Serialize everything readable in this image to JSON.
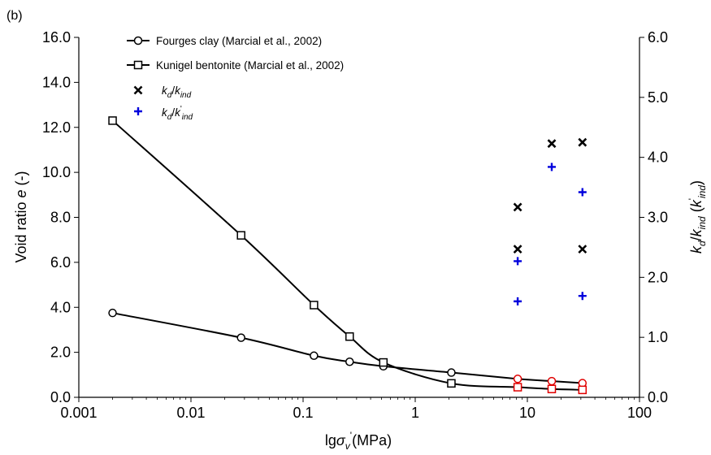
{
  "chart_data": {
    "panel_label": "(b)",
    "type": "line+scatter",
    "x_scale": "log",
    "xlim": [
      0.001,
      100
    ],
    "ylim_left": [
      0,
      16
    ],
    "ylim_right": [
      0,
      6
    ],
    "x_ticks": [
      0.001,
      0.01,
      0.1,
      1,
      10,
      100
    ],
    "x_tick_labels": [
      "0.001",
      "0.01",
      "0.1",
      "1",
      "10",
      "100"
    ],
    "y_left_ticks": [
      0,
      2,
      4,
      6,
      8,
      10,
      12,
      14,
      16
    ],
    "y_left_tick_labels": [
      "0.0",
      "2.0",
      "4.0",
      "6.0",
      "8.0",
      "10.0",
      "12.0",
      "14.0",
      "16.0"
    ],
    "y_right_ticks": [
      0,
      1,
      2,
      3,
      4,
      5,
      6
    ],
    "y_right_tick_labels": [
      "0.0",
      "1.0",
      "2.0",
      "3.0",
      "4.0",
      "5.0",
      "6.0"
    ],
    "xlabel": {
      "main": "lg",
      "sym": "σ",
      "sub": "v",
      "prime": "'",
      "unit": "(MPa)"
    },
    "ylabel_left": {
      "pre": "Void ratio ",
      "sym": "e",
      "post": " (-)"
    },
    "ylabel_right": {
      "k": "k",
      "d": "d",
      "slash": "/",
      "k2": "k",
      "ind": "ind",
      "paren_open": " (",
      "k3": "k",
      "prime": "'",
      "ind2": "ind",
      "paren_close": ")"
    },
    "legend_position": "top-left",
    "legend": [
      {
        "label": "Fourges clay (Marcial et al., 2002)",
        "marker": "circle"
      },
      {
        "label": "Kunigel bentonite (Marcial et al., 2002)",
        "marker": "square"
      },
      {
        "label": {
          "k": "k",
          "d": "d",
          "slash": "/",
          "k2": "k",
          "ind": "ind"
        },
        "marker": "x"
      },
      {
        "label": {
          "k": "k",
          "d": "d",
          "slash": "/",
          "k2": "k",
          "prime": "'",
          "ind": "ind"
        },
        "marker": "plus"
      }
    ],
    "series": [
      {
        "name": "Fourges clay (Marcial et al., 2002)",
        "axis": "left",
        "marker": "circle",
        "color": "#000000",
        "x": [
          0.002,
          0.028,
          0.125,
          0.26,
          0.52,
          2.1,
          8.2,
          16.5,
          31
        ],
        "y": [
          3.75,
          2.65,
          1.85,
          1.58,
          1.38,
          1.1,
          0.82,
          0.72,
          0.63
        ],
        "highlight_color": "#e00000",
        "highlight_from_index": 6
      },
      {
        "name": "Kunigel bentonite (Marcial et al., 2002)",
        "axis": "left",
        "marker": "square",
        "color": "#000000",
        "x": [
          0.002,
          0.028,
          0.125,
          0.26,
          0.52,
          2.1,
          8.2,
          16.5,
          31
        ],
        "y": [
          12.3,
          7.2,
          4.1,
          2.7,
          1.55,
          0.62,
          0.45,
          0.37,
          0.33
        ],
        "highlight_color": "#e00000",
        "highlight_from_index": 6
      },
      {
        "name": "kd/kind",
        "axis": "right",
        "marker": "x",
        "color": "#000000",
        "x": [
          8.2,
          8.2,
          16.5,
          31,
          31
        ],
        "y": [
          3.17,
          2.47,
          4.23,
          4.25,
          2.47
        ]
      },
      {
        "name": "kd/k'ind",
        "axis": "right",
        "marker": "plus",
        "color": "#0000dd",
        "x": [
          8.2,
          8.2,
          16.5,
          31,
          31
        ],
        "y": [
          2.27,
          1.6,
          3.84,
          3.42,
          1.69
        ]
      }
    ]
  }
}
